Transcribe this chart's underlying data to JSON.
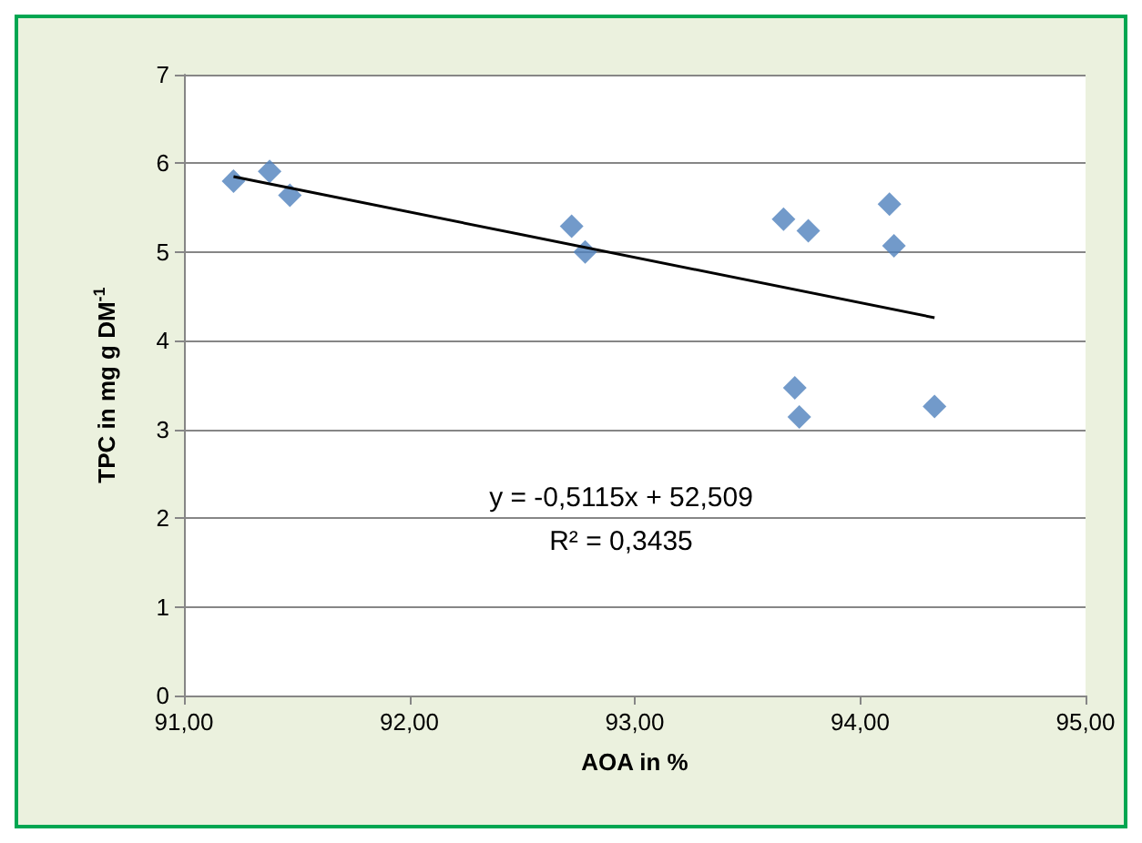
{
  "chart_data": {
    "type": "scatter",
    "xlabel": "AOA in %",
    "ylabel": "TPC in mg g DM$^{-1}$",
    "xlim": [
      91,
      95
    ],
    "xticks": [
      {
        "value": 91,
        "label": "91,00"
      },
      {
        "value": 92,
        "label": "92,00"
      },
      {
        "value": 93,
        "label": "93,00"
      },
      {
        "value": 94,
        "label": "94,00"
      },
      {
        "value": 95,
        "label": "95,00"
      }
    ],
    "ylim": [
      0,
      7
    ],
    "yticks": [
      0,
      1,
      2,
      3,
      4,
      5,
      6,
      7
    ],
    "grid": "y",
    "legend": false,
    "marker": "diamond",
    "series": [
      {
        "color": "#4f81bd",
        "x": [
          91.22,
          91.38,
          91.47,
          92.72,
          92.78,
          93.66,
          93.77,
          93.71,
          93.73,
          94.13,
          94.15,
          94.33
        ],
        "values": [
          5.8,
          5.91,
          5.64,
          5.29,
          5.0,
          5.37,
          5.24,
          3.47,
          3.14,
          5.54,
          5.07,
          3.26
        ]
      },
      {
        "type": "line",
        "color": "#000000",
        "marker": "none",
        "x": [
          91.22,
          94.33
        ],
        "values": [
          5.85,
          4.26
        ]
      }
    ],
    "annotations": [
      "y = -0,5115x + 52,509",
      "R² = 0,3435"
    ]
  }
}
